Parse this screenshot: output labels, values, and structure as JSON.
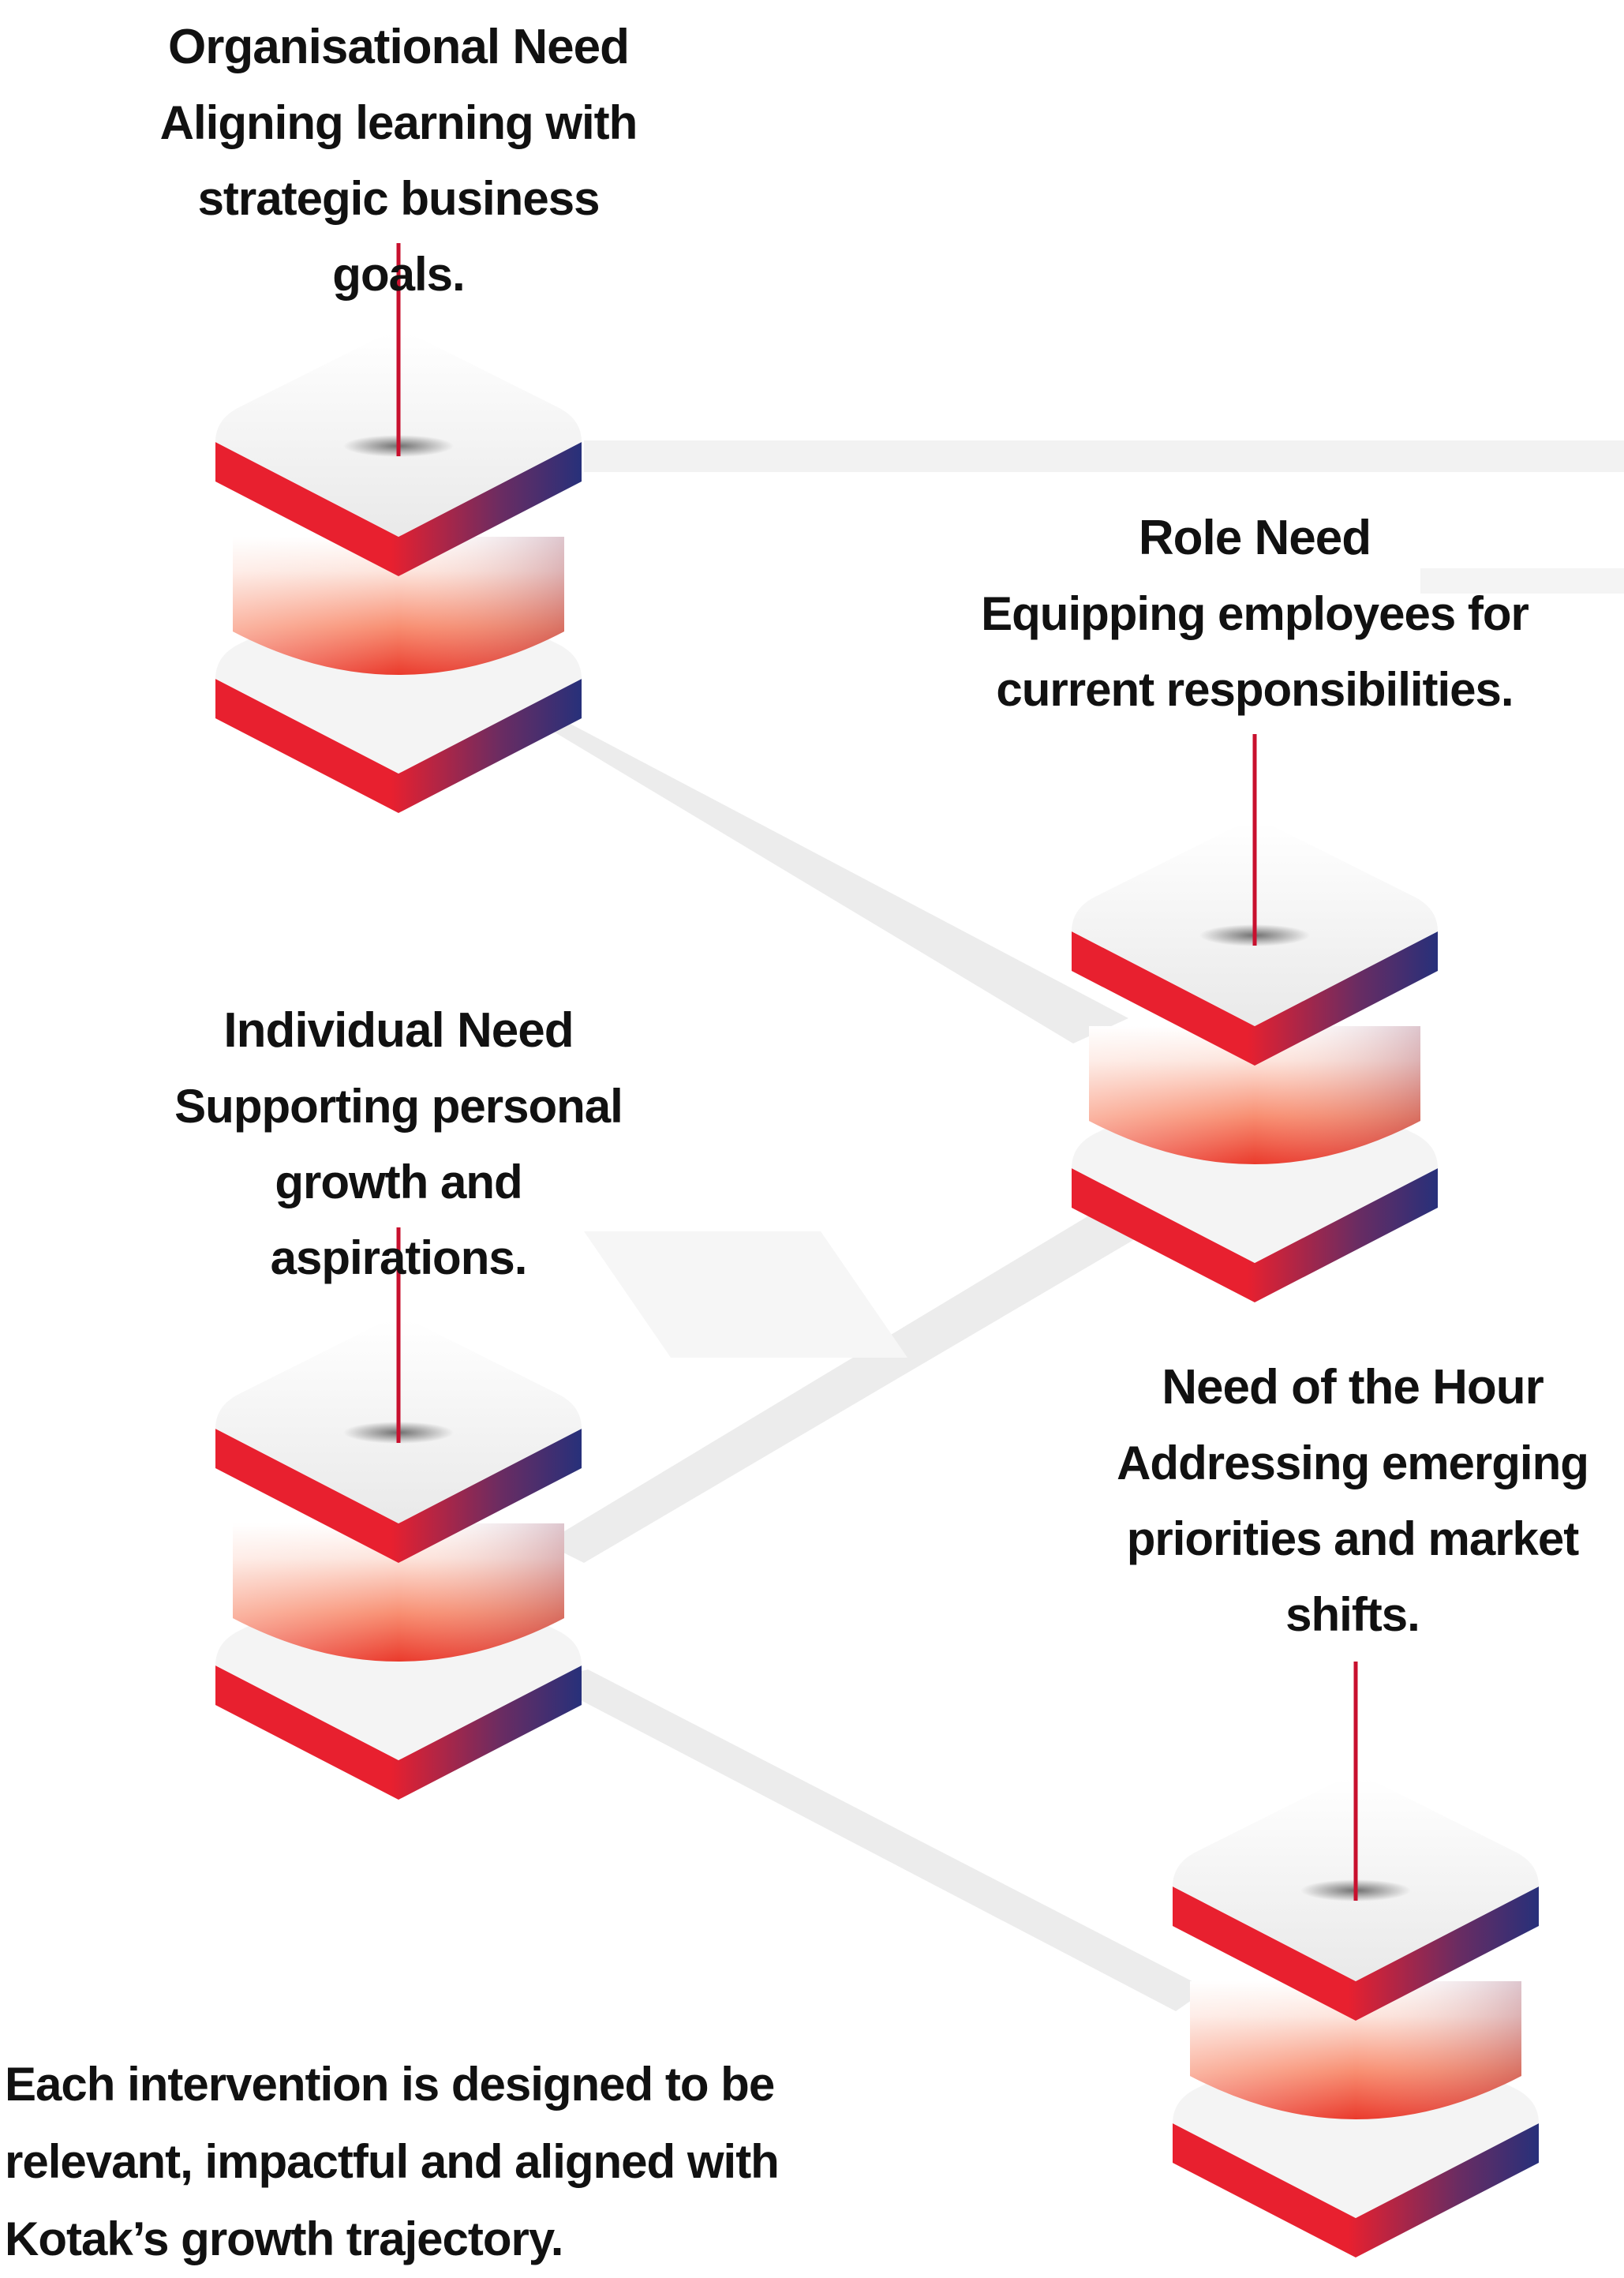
{
  "nodes": [
    {
      "id": "organisational",
      "title": "Organisational Need",
      "description": "Aligning learning with strategic business goals."
    },
    {
      "id": "role",
      "title": "Role Need",
      "description": "Equipping employees for current responsibilities."
    },
    {
      "id": "individual",
      "title": "Individual Need",
      "description": "Supporting personal growth and aspirations."
    },
    {
      "id": "hour",
      "title": "Need of the Hour",
      "description": "Addressing emerging priorities and market shifts."
    }
  ],
  "footer": {
    "text": "Each intervention is designed to be relevant, impactful and aligned with Kotak’s growth trajectory."
  },
  "colors": {
    "red": "#e8202f",
    "navy": "#27307a",
    "stem": "#c8102e",
    "top_face": "#f4f4f4",
    "connector": "#ececec",
    "text": "#111111"
  }
}
